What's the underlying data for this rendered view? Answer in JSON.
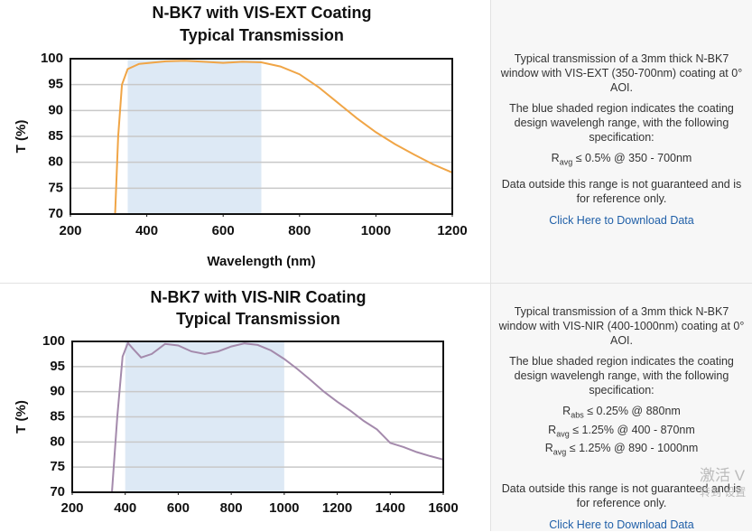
{
  "chart_data": [
    {
      "type": "line",
      "title": "N-BK7 with VIS-EXT Coating",
      "subtitle": "Typical Transmission",
      "ylabel": "T (%)",
      "xlabel": "Wavelength (nm)",
      "color": "#f0a546",
      "shade_color": "#dde9f5",
      "shaded": [
        350,
        700
      ],
      "x": [
        317,
        325,
        335,
        350,
        380,
        450,
        500,
        550,
        600,
        650,
        700,
        750,
        800,
        850,
        900,
        950,
        1000,
        1050,
        1100,
        1150,
        1200
      ],
      "values": [
        70,
        85,
        95,
        98,
        99,
        99.5,
        99.6,
        99.4,
        99.2,
        99.4,
        99.3,
        98.5,
        97,
        94.5,
        91.5,
        88.5,
        85.8,
        83.5,
        81.5,
        79.6,
        78
      ],
      "xlim": [
        200,
        1200
      ],
      "xticks": [
        200,
        400,
        600,
        800,
        1000,
        1200
      ],
      "ylim": [
        70,
        100
      ],
      "yticks": [
        70,
        75,
        80,
        85,
        90,
        95,
        100
      ],
      "grid": true
    },
    {
      "type": "line",
      "title": "N-BK7 with VIS-NIR Coating",
      "subtitle": "Typical Transmission",
      "ylabel": "T (%)",
      "color": "#a48aac",
      "shade_color": "#dde9f5",
      "shaded": [
        400,
        1000
      ],
      "x": [
        350,
        370,
        390,
        410,
        430,
        460,
        500,
        550,
        600,
        650,
        700,
        750,
        800,
        850,
        900,
        950,
        1000,
        1050,
        1100,
        1150,
        1200,
        1250,
        1300,
        1350,
        1400,
        1450,
        1500,
        1550,
        1600
      ],
      "values": [
        70,
        85,
        97,
        99.7,
        98.5,
        96.8,
        97.5,
        99.5,
        99.2,
        98,
        97.5,
        98,
        99,
        99.6,
        99.3,
        98.2,
        96.5,
        94.5,
        92.3,
        90,
        88,
        86.2,
        84.2,
        82.5,
        79.8,
        79,
        78,
        77.2,
        76.5
      ],
      "xlim": [
        200,
        1600
      ],
      "xticks": [
        200,
        400,
        600,
        800,
        1000,
        1200,
        1400,
        1600
      ],
      "ylim": [
        70,
        100
      ],
      "yticks": [
        70,
        75,
        80,
        85,
        90,
        95,
        100
      ],
      "grid": true
    }
  ],
  "panels": [
    {
      "paragraphs": [
        "Typical transmission of a 3mm thick N-BK7 window with VIS-EXT (350-700nm) coating at 0° AOI.",
        "The blue shaded region indicates the coating design wavelengh range, with the following specification:"
      ],
      "specs": [
        {
          "symbol": "R",
          "sub": "avg",
          "text": "≤ 0.5% @ 350 - 700nm"
        }
      ],
      "note": "Data outside this range is not guaranteed and is for reference only.",
      "link": "Click Here to Download Data"
    },
    {
      "paragraphs": [
        "Typical transmission of a 3mm thick N-BK7 window with VIS-NIR (400-1000nm) coating at 0° AOI.",
        "The blue shaded region indicates the coating design wavelengh range, with the following specification:"
      ],
      "specs": [
        {
          "symbol": "R",
          "sub": "abs",
          "text": "≤ 0.25% @ 880nm"
        },
        {
          "symbol": "R",
          "sub": "avg",
          "text": "≤ 1.25% @ 400 - 870nm"
        },
        {
          "symbol": "R",
          "sub": "avg",
          "text": "≤ 1.25% @ 890 - 1000nm"
        }
      ],
      "note": "Data outside this range is not guaranteed and is for reference only.",
      "link": "Click Here to Download Data"
    }
  ],
  "watermark": [
    "激活 V",
    "转到 设置"
  ]
}
